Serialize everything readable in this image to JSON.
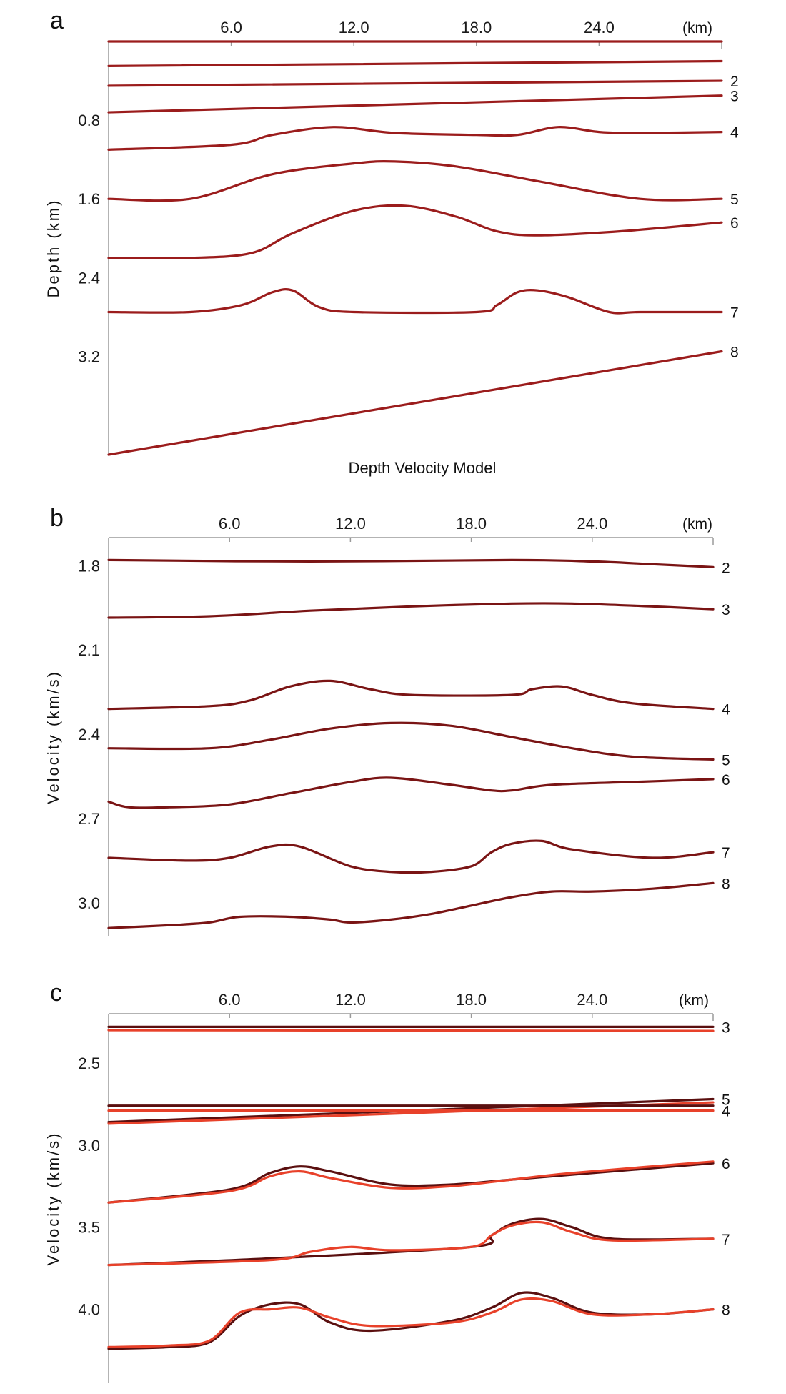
{
  "chart_data": [
    {
      "panel": "a",
      "type": "line",
      "caption": "Depth Velocity Model",
      "ylabel": "Depth (km)",
      "xunit": "(km)",
      "xlim": [
        0,
        30
      ],
      "ylim": [
        0,
        4.2
      ],
      "y_inverted": true,
      "xticks": [
        6.0,
        12.0,
        18.0,
        24.0
      ],
      "xtick_labels": [
        "6.0",
        "12.0",
        "18.0",
        "24.0"
      ],
      "yticks": [
        0.8,
        1.6,
        2.4,
        3.2
      ],
      "ytick_labels": [
        "0.8",
        "1.6",
        "2.4",
        "3.2"
      ],
      "series": [
        {
          "label": "",
          "color": "#9b1c1c",
          "x": [
            0,
            30
          ],
          "y": [
            0.0,
            0.0
          ]
        },
        {
          "label": "",
          "color": "#9b1c1c",
          "x": [
            0,
            30
          ],
          "y": [
            0.25,
            0.2
          ]
        },
        {
          "label": "2",
          "color": "#9b1c1c",
          "x": [
            0,
            30
          ],
          "y": [
            0.45,
            0.4
          ]
        },
        {
          "label": "3",
          "color": "#9b1c1c",
          "x": [
            0,
            30
          ],
          "y": [
            0.72,
            0.55
          ]
        },
        {
          "label": "4",
          "color": "#9b1c1c",
          "x": [
            0,
            6,
            8,
            11,
            14,
            18,
            20,
            22,
            24,
            26,
            30
          ],
          "y": [
            1.1,
            1.05,
            0.95,
            0.87,
            0.93,
            0.95,
            0.95,
            0.87,
            0.92,
            0.93,
            0.92
          ]
        },
        {
          "label": "5",
          "color": "#9b1c1c",
          "x": [
            0,
            4,
            8,
            12,
            14,
            17,
            21,
            26,
            30
          ],
          "y": [
            1.6,
            1.6,
            1.35,
            1.24,
            1.22,
            1.27,
            1.42,
            1.6,
            1.6
          ]
        },
        {
          "label": "6",
          "color": "#9b1c1c",
          "x": [
            0,
            4,
            7,
            9,
            12,
            14.5,
            17,
            19,
            21,
            25,
            30
          ],
          "y": [
            2.2,
            2.2,
            2.15,
            1.95,
            1.72,
            1.67,
            1.78,
            1.93,
            1.97,
            1.93,
            1.84
          ]
        },
        {
          "label": "7",
          "color": "#9b1c1c",
          "x": [
            0,
            4,
            6.5,
            8,
            9,
            10.3,
            12,
            18,
            19,
            20,
            21,
            22.5,
            24.5,
            26,
            30
          ],
          "y": [
            2.75,
            2.75,
            2.68,
            2.55,
            2.53,
            2.7,
            2.75,
            2.75,
            2.68,
            2.55,
            2.53,
            2.6,
            2.75,
            2.75,
            2.75
          ]
        },
        {
          "label": "8",
          "color": "#9b1c1c",
          "x": [
            0,
            30
          ],
          "y": [
            4.2,
            3.15
          ]
        }
      ]
    },
    {
      "panel": "b",
      "type": "line",
      "ylabel": "Velocity (km/s)",
      "xunit": "(km)",
      "xlim": [
        0,
        30
      ],
      "ylim": [
        1.7,
        3.12
      ],
      "y_inverted": true,
      "xticks": [
        6.0,
        12.0,
        18.0,
        24.0
      ],
      "xtick_labels": [
        "6.0",
        "12.0",
        "18.0",
        "24.0"
      ],
      "yticks": [
        1.8,
        2.1,
        2.4,
        2.7,
        3.0
      ],
      "ytick_labels": [
        "1.8",
        "2.1",
        "2.4",
        "2.7",
        "3.0"
      ],
      "series": [
        {
          "label": "2",
          "color": "#7a1414",
          "x": [
            0,
            10,
            20,
            24,
            27,
            30
          ],
          "y": [
            1.78,
            1.785,
            1.78,
            1.785,
            1.795,
            1.805
          ]
        },
        {
          "label": "3",
          "color": "#7a1414",
          "x": [
            0,
            5,
            10,
            15,
            20,
            23,
            27,
            30
          ],
          "y": [
            1.985,
            1.98,
            1.96,
            1.945,
            1.935,
            1.935,
            1.945,
            1.955
          ]
        },
        {
          "label": "4",
          "color": "#7a1414",
          "x": [
            0,
            5,
            7,
            9,
            11,
            13,
            15,
            20,
            21,
            22.5,
            24,
            26,
            30
          ],
          "y": [
            2.31,
            2.3,
            2.28,
            2.23,
            2.21,
            2.24,
            2.26,
            2.26,
            2.24,
            2.23,
            2.26,
            2.29,
            2.31
          ]
        },
        {
          "label": "5",
          "color": "#7a1414",
          "x": [
            0,
            5,
            8,
            11,
            14,
            17,
            20,
            23,
            26,
            30
          ],
          "y": [
            2.45,
            2.45,
            2.42,
            2.38,
            2.36,
            2.37,
            2.41,
            2.45,
            2.48,
            2.49
          ]
        },
        {
          "label": "6",
          "color": "#7a1414",
          "x": [
            0,
            1,
            3,
            6,
            9,
            12,
            14,
            17,
            19,
            20,
            22,
            26,
            30
          ],
          "y": [
            2.64,
            2.66,
            2.66,
            2.65,
            2.61,
            2.57,
            2.555,
            2.58,
            2.6,
            2.6,
            2.58,
            2.57,
            2.56
          ]
        },
        {
          "label": "7",
          "color": "#7a1414",
          "x": [
            0,
            4,
            6,
            8,
            9.5,
            12,
            14,
            16,
            18,
            19,
            20,
            21.5,
            23,
            27,
            30
          ],
          "y": [
            2.84,
            2.85,
            2.84,
            2.8,
            2.8,
            2.87,
            2.89,
            2.89,
            2.87,
            2.82,
            2.79,
            2.78,
            2.81,
            2.84,
            2.82
          ]
        },
        {
          "label": "8",
          "color": "#7a1414",
          "x": [
            0,
            3,
            5,
            6.5,
            9,
            11,
            12,
            14,
            16,
            18,
            20,
            22,
            24,
            27,
            30
          ],
          "y": [
            3.09,
            3.08,
            3.07,
            3.05,
            3.05,
            3.06,
            3.07,
            3.06,
            3.04,
            3.01,
            2.98,
            2.96,
            2.96,
            2.95,
            2.93
          ]
        }
      ]
    },
    {
      "panel": "c",
      "type": "line",
      "ylabel": "Velocity (km/s)",
      "xunit": "(km)",
      "xlim": [
        0,
        30
      ],
      "ylim": [
        2.2,
        4.45
      ],
      "y_inverted": true,
      "xticks": [
        6.0,
        12.0,
        18.0,
        24.0
      ],
      "xtick_labels": [
        "6.0",
        "12.0",
        "18.0",
        "24.0"
      ],
      "yticks": [
        2.5,
        3.0,
        3.5,
        4.0
      ],
      "ytick_labels": [
        "2.5",
        "3.0",
        "3.5",
        "4.0"
      ],
      "series": [
        {
          "label": "3",
          "color": "#5a0f0f",
          "x": [
            0,
            30
          ],
          "y": [
            2.28,
            2.28
          ]
        },
        {
          "label": "",
          "color": "#e8412a",
          "x": [
            0,
            30
          ],
          "y": [
            2.3,
            2.305
          ]
        },
        {
          "label": "5",
          "color": "#5a0f0f",
          "x": [
            0,
            30
          ],
          "y": [
            2.86,
            2.72
          ]
        },
        {
          "label": "",
          "color": "#e8412a",
          "x": [
            0,
            30
          ],
          "y": [
            2.87,
            2.74
          ]
        },
        {
          "label": "",
          "color": "#5a0f0f",
          "x": [
            0,
            30
          ],
          "y": [
            2.76,
            2.76
          ]
        },
        {
          "label": "4",
          "color": "#e8412a",
          "x": [
            0,
            30
          ],
          "y": [
            2.79,
            2.79
          ]
        },
        {
          "label": "6",
          "color": "#5a0f0f",
          "x": [
            0,
            6,
            8,
            9.5,
            11,
            14,
            17,
            20,
            23,
            30
          ],
          "y": [
            3.35,
            3.27,
            3.17,
            3.13,
            3.16,
            3.24,
            3.24,
            3.21,
            3.18,
            3.11
          ]
        },
        {
          "label": "",
          "color": "#e8412a",
          "x": [
            0,
            6,
            8,
            9.5,
            11,
            14,
            17,
            20,
            23,
            30
          ],
          "y": [
            3.35,
            3.28,
            3.19,
            3.16,
            3.2,
            3.26,
            3.25,
            3.21,
            3.17,
            3.1
          ]
        },
        {
          "label": "7",
          "color": "#5a0f0f",
          "x": [
            0,
            8,
            18,
            19,
            20,
            21.5,
            23,
            25,
            30
          ],
          "y": [
            3.73,
            3.69,
            3.62,
            3.55,
            3.48,
            3.45,
            3.5,
            3.57,
            3.57
          ]
        },
        {
          "label": "",
          "color": "#e8412a",
          "x": [
            0,
            8,
            10,
            12,
            14,
            18,
            19,
            20,
            21.5,
            23,
            25,
            30
          ],
          "y": [
            3.73,
            3.7,
            3.65,
            3.62,
            3.64,
            3.62,
            3.55,
            3.49,
            3.47,
            3.53,
            3.58,
            3.57
          ]
        },
        {
          "label": "8",
          "color": "#5a0f0f",
          "x": [
            0,
            3,
            5,
            6.5,
            8,
            9.5,
            11,
            13,
            17,
            19,
            20.5,
            22,
            24,
            27,
            30
          ],
          "y": [
            4.24,
            4.23,
            4.2,
            4.04,
            3.97,
            3.97,
            4.08,
            4.13,
            4.07,
            3.99,
            3.9,
            3.93,
            4.02,
            4.03,
            4.0
          ]
        },
        {
          "label": "",
          "color": "#e8412a",
          "x": [
            0,
            3,
            5,
            6.5,
            8,
            9.5,
            11,
            13,
            17,
            19,
            20.5,
            22,
            24,
            27,
            30
          ],
          "y": [
            4.23,
            4.22,
            4.19,
            4.02,
            4.0,
            3.99,
            4.05,
            4.1,
            4.08,
            4.02,
            3.94,
            3.95,
            4.03,
            4.03,
            4.0
          ]
        }
      ]
    }
  ]
}
